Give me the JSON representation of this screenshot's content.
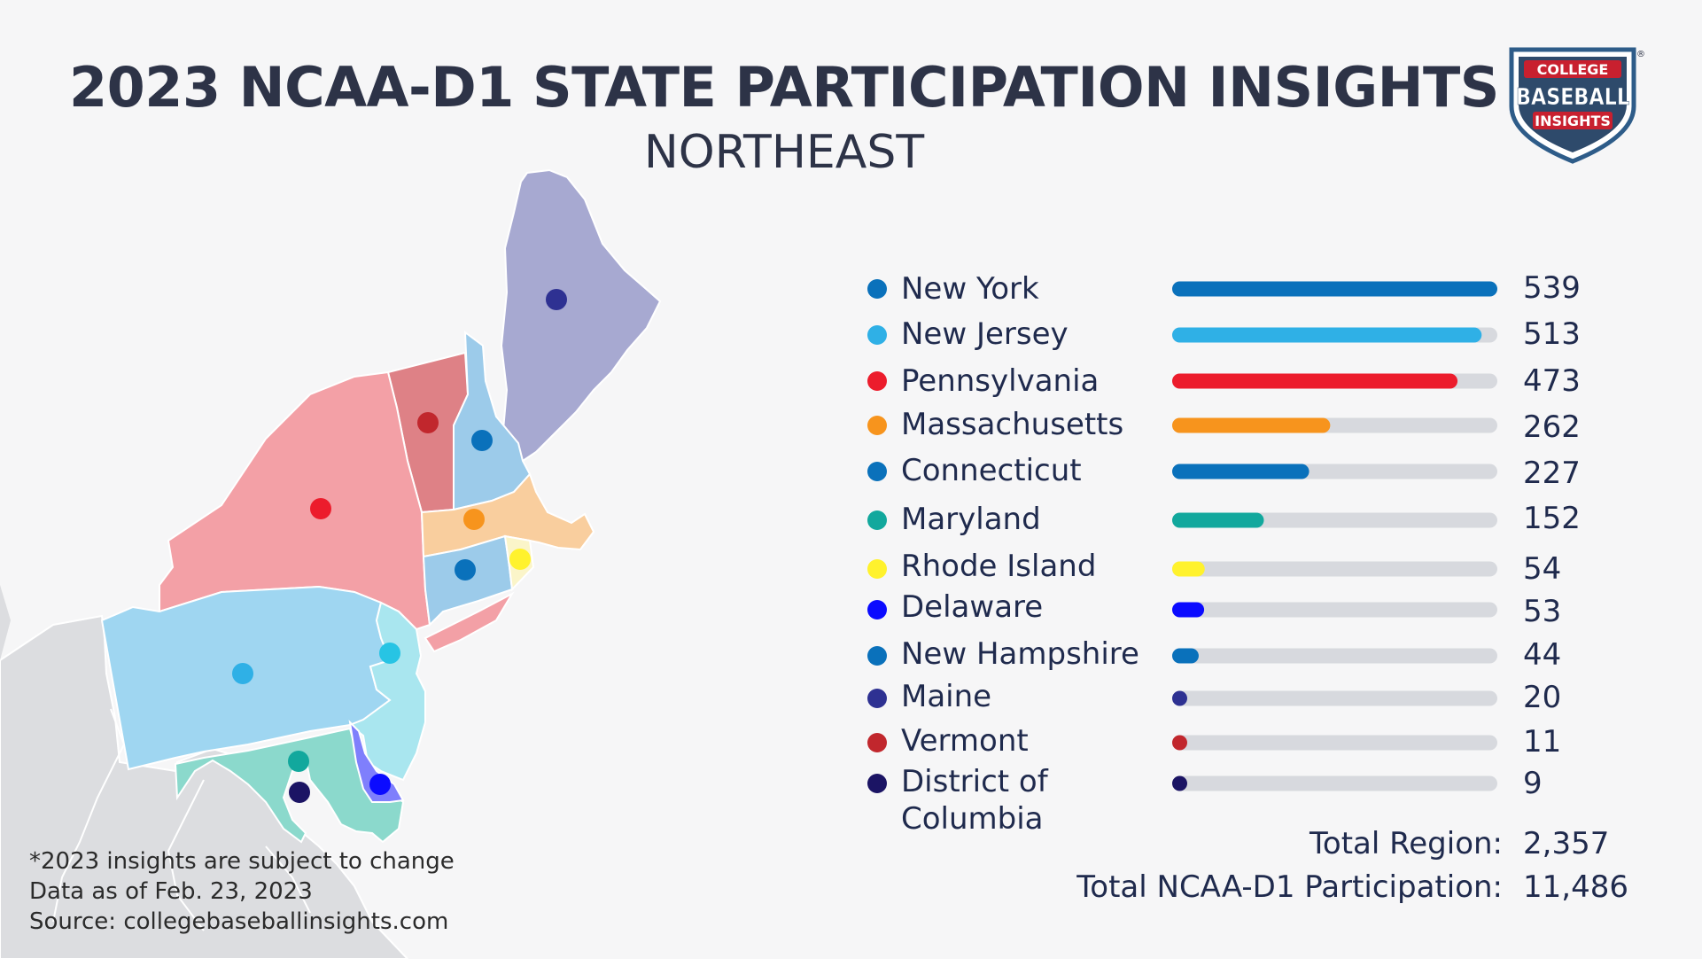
{
  "title": "2023 NCAA-D1  STATE PARTICIPATION INSIGHTS",
  "subtitle": "NORTHEAST",
  "logo": {
    "line1": "COLLEGE",
    "line2": "BASEBALL",
    "line3": "INSIGHTS",
    "mark": "®"
  },
  "chart_data": {
    "type": "bar",
    "orientation": "horizontal",
    "categories": [
      "New York",
      "New Jersey",
      "Pennsylvania",
      "Massachusetts",
      "Connecticut",
      "Maryland",
      "Rhode Island",
      "Delaware",
      "New Hampshire",
      "Maine",
      "Vermont",
      "District of Columbia"
    ],
    "values": [
      539,
      513,
      473,
      262,
      227,
      152,
      54,
      53,
      44,
      20,
      11,
      9
    ],
    "value_labels": [
      "539",
      "513",
      "473",
      "262",
      "227",
      "152",
      "54",
      "53",
      "44",
      "20",
      "11",
      "9"
    ],
    "colors": [
      "#0a71bb",
      "#2fb0e6",
      "#ec1c2c",
      "#f7941d",
      "#0a71bb",
      "#12a89d",
      "#fff22d",
      "#0b0bff",
      "#0a71bb",
      "#2e3192",
      "#c1272d",
      "#1b1464"
    ],
    "track_color": "#d7d9de",
    "xlim": [
      0,
      539
    ],
    "legend": "left of bars",
    "grid": false
  },
  "totals": {
    "region_label": "Total Region:",
    "region_value": "2,357",
    "ncaa_label": "Total NCAA-D1 Participation:",
    "ncaa_value": "11,486"
  },
  "footnotes": {
    "line1": "*2023 insights are subject to change",
    "line2": "Data as of Feb. 23, 2023",
    "line3": "Source: collegebaseballinsights.com"
  },
  "map": {
    "states": [
      {
        "name": "Maine",
        "fill": "#a7a9d1",
        "dot": "#2e3192"
      },
      {
        "name": "Vermont",
        "fill": "#de8186",
        "dot": "#c1272d"
      },
      {
        "name": "New Hampshire",
        "fill": "#9ccbea",
        "dot": "#0a71bb"
      },
      {
        "name": "New York",
        "fill": "#f3a0a6",
        "dot": "#ec1c2c"
      },
      {
        "name": "Massachusetts",
        "fill": "#f9ce9e",
        "dot": "#f7941d"
      },
      {
        "name": "Connecticut",
        "fill": "#9ccbea",
        "dot": "#0a71bb"
      },
      {
        "name": "Rhode Island",
        "fill": "#fbf5c9",
        "dot": "#fff22d"
      },
      {
        "name": "Pennsylvania",
        "fill": "#9fd6f1",
        "dot": "#2fb0e6"
      },
      {
        "name": "New Jersey",
        "fill": "#a9e6ef",
        "dot": "#27c4e4"
      },
      {
        "name": "Maryland",
        "fill": "#8bd9cc",
        "dot": "#12a89d"
      },
      {
        "name": "Delaware",
        "fill": "#7f7ffc",
        "dot": "#0b0bff"
      },
      {
        "name": "District of Columbia",
        "fill": "#8bd9cc",
        "dot": "#1b1464"
      }
    ],
    "background_land": "#dcdde0"
  }
}
